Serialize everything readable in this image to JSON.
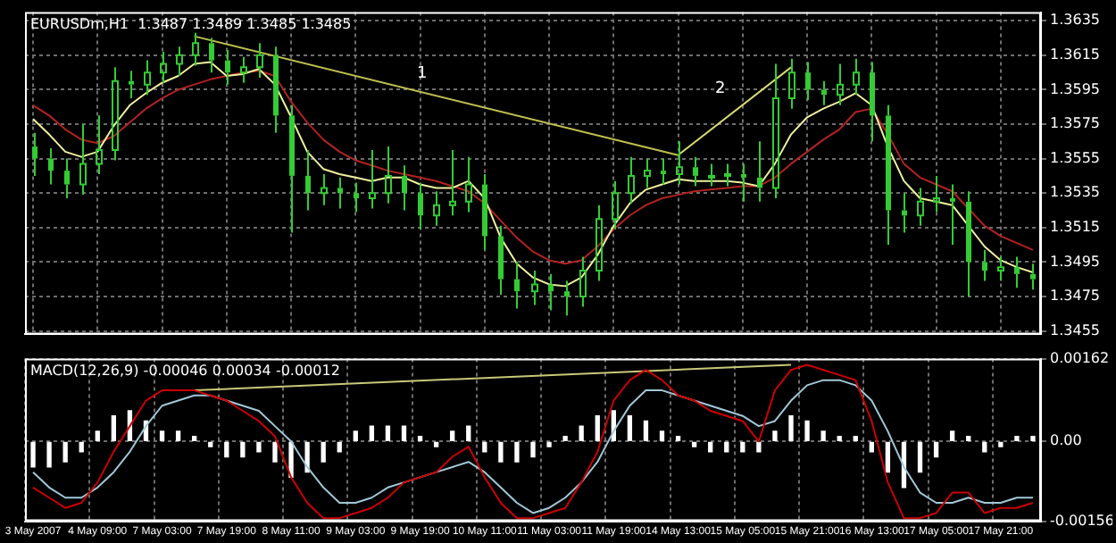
{
  "chart_data": [
    {
      "type": "candlestick",
      "title": "EURUSDm,H1  1.3487 1.3489 1.3485 1.3485",
      "color": "#33cc33",
      "categories": [
        null,
        null,
        null,
        null,
        null,
        null,
        null,
        null,
        null,
        null,
        null,
        null,
        null,
        null,
        null,
        null,
        null,
        null,
        null,
        null,
        null,
        null,
        null,
        null,
        null,
        null,
        null,
        null,
        null,
        null,
        null,
        null,
        null,
        null,
        null,
        null,
        null,
        null,
        null,
        null,
        null,
        null,
        null,
        null,
        null,
        null,
        null,
        null,
        null,
        null,
        null,
        null,
        null,
        null,
        null,
        null,
        null,
        null,
        null,
        null,
        null,
        null,
        null
      ],
      "ohlc": [
        [
          1.3562,
          1.357,
          1.3545,
          1.3555
        ],
        [
          1.3555,
          1.3561,
          1.354,
          1.3548
        ],
        [
          1.3548,
          1.3555,
          1.3532,
          1.354
        ],
        [
          1.354,
          1.3575,
          1.3534,
          1.3552
        ],
        [
          1.3552,
          1.358,
          1.3546,
          1.356
        ],
        [
          1.356,
          1.3608,
          1.3554,
          1.36
        ],
        [
          1.36,
          1.3606,
          1.359,
          1.3598
        ],
        [
          1.3598,
          1.3612,
          1.3592,
          1.3605
        ],
        [
          1.3605,
          1.3617,
          1.3599,
          1.361
        ],
        [
          1.361,
          1.362,
          1.3603,
          1.3615
        ],
        [
          1.3615,
          1.3628,
          1.3609,
          1.3622
        ],
        [
          1.3622,
          1.3625,
          1.3605,
          1.3612
        ],
        [
          1.3612,
          1.3618,
          1.3598,
          1.3605
        ],
        [
          1.3605,
          1.3614,
          1.3599,
          1.3608
        ],
        [
          1.3608,
          1.3622,
          1.3602,
          1.3615
        ],
        [
          1.3615,
          1.362,
          1.357,
          1.358
        ],
        [
          1.358,
          1.3586,
          1.3512,
          1.3545
        ],
        [
          1.3545,
          1.356,
          1.3525,
          1.3535
        ],
        [
          1.3535,
          1.3546,
          1.3528,
          1.3538
        ],
        [
          1.3538,
          1.3544,
          1.3526,
          1.3535
        ],
        [
          1.3535,
          1.3541,
          1.3524,
          1.3532
        ],
        [
          1.3532,
          1.356,
          1.3526,
          1.3535
        ],
        [
          1.3535,
          1.3562,
          1.3529,
          1.3545
        ],
        [
          1.3545,
          1.3551,
          1.3525,
          1.3535
        ],
        [
          1.3535,
          1.3541,
          1.3514,
          1.3522
        ],
        [
          1.3522,
          1.3536,
          1.3516,
          1.3528
        ],
        [
          1.3528,
          1.356,
          1.3522,
          1.353
        ],
        [
          1.353,
          1.3556,
          1.3524,
          1.354
        ],
        [
          1.354,
          1.3546,
          1.3502,
          1.351
        ],
        [
          1.351,
          1.3516,
          1.3476,
          1.3485
        ],
        [
          1.3485,
          1.3495,
          1.3468,
          1.3478
        ],
        [
          1.3478,
          1.349,
          1.347,
          1.3482
        ],
        [
          1.3482,
          1.3488,
          1.3467,
          1.3478
        ],
        [
          1.3478,
          1.3484,
          1.3464,
          1.3475
        ],
        [
          1.3475,
          1.3498,
          1.3469,
          1.349
        ],
        [
          1.349,
          1.3528,
          1.3484,
          1.352
        ],
        [
          1.352,
          1.3542,
          1.3514,
          1.3535
        ],
        [
          1.3535,
          1.3556,
          1.3529,
          1.3545
        ],
        [
          1.3545,
          1.3555,
          1.3538,
          1.3548
        ],
        [
          1.3548,
          1.3555,
          1.354,
          1.3546
        ],
        [
          1.3546,
          1.3565,
          1.354,
          1.355
        ],
        [
          1.355,
          1.3556,
          1.3539,
          1.3545
        ],
        [
          1.3545,
          1.3552,
          1.3539,
          1.3545
        ],
        [
          1.3545,
          1.3552,
          1.3539,
          1.3546
        ],
        [
          1.3546,
          1.3552,
          1.353,
          1.3544
        ],
        [
          1.3544,
          1.3565,
          1.353,
          1.3538
        ],
        [
          1.3538,
          1.361,
          1.3532,
          1.359
        ],
        [
          1.359,
          1.3613,
          1.3584,
          1.3605
        ],
        [
          1.3605,
          1.3611,
          1.3589,
          1.3595
        ],
        [
          1.3595,
          1.36,
          1.3586,
          1.3592
        ],
        [
          1.3592,
          1.361,
          1.3586,
          1.3598
        ],
        [
          1.3598,
          1.3613,
          1.3592,
          1.3605
        ],
        [
          1.3605,
          1.3611,
          1.3565,
          1.358
        ],
        [
          1.358,
          1.3586,
          1.3505,
          1.3525
        ],
        [
          1.3525,
          1.3535,
          1.3512,
          1.3522
        ],
        [
          1.3522,
          1.3538,
          1.3516,
          1.353
        ],
        [
          1.353,
          1.3545,
          1.3524,
          1.3532
        ],
        [
          1.3532,
          1.354,
          1.3505,
          1.353
        ],
        [
          1.353,
          1.3536,
          1.3475,
          1.3495
        ],
        [
          1.3495,
          1.3502,
          1.3484,
          1.349
        ],
        [
          1.349,
          1.3498,
          1.3484,
          1.3492
        ],
        [
          1.3492,
          1.3498,
          1.348,
          1.3488
        ],
        [
          1.3488,
          1.3494,
          1.3479,
          1.3485
        ]
      ],
      "series": [
        {
          "type": "line",
          "color": "#f0f0a0",
          "values": [
            1.3578,
            1.3569,
            1.3559,
            1.3556,
            1.3559,
            1.3574,
            1.3586,
            1.3593,
            1.3599,
            1.3603,
            1.361,
            1.3611,
            1.3603,
            1.3604,
            1.3607,
            1.3598,
            1.3579,
            1.3559,
            1.3549,
            1.3546,
            1.3544,
            1.3542,
            1.3544,
            1.3544,
            1.354,
            1.3538,
            1.3538,
            1.3542,
            1.3532,
            1.3509,
            1.3494,
            1.3486,
            1.3482,
            1.3481,
            1.3486,
            1.3499,
            1.3516,
            1.3529,
            1.3537,
            1.354,
            1.3543,
            1.3542,
            1.3542,
            1.3542,
            1.3541,
            1.3539,
            1.3552,
            1.3569,
            1.3579,
            1.3584,
            1.3588,
            1.3593,
            1.3586,
            1.3562,
            1.3542,
            1.3532,
            1.353,
            1.3528,
            1.3516,
            1.3504,
            1.3496,
            1.3492,
            1.3489
          ]
        },
        {
          "type": "line",
          "color": "#b22222",
          "values": [
            1.3586,
            1.358,
            1.3572,
            1.3566,
            1.3564,
            1.3568,
            1.3576,
            1.3584,
            1.359,
            1.3595,
            1.3598,
            1.3601,
            1.3603,
            1.3605,
            1.3606,
            1.3603,
            1.3588,
            1.3576,
            1.3566,
            1.3559,
            1.3554,
            1.3551,
            1.3548,
            1.3546,
            1.3544,
            1.3542,
            1.3539,
            1.3536,
            1.3529,
            1.3519,
            1.3509,
            1.3501,
            1.3496,
            1.3494,
            1.3496,
            1.3504,
            1.3514,
            1.3522,
            1.3528,
            1.3532,
            1.3534,
            1.3536,
            1.3537,
            1.3538,
            1.3539,
            1.3539,
            1.3544,
            1.3552,
            1.3559,
            1.3566,
            1.3572,
            1.3582,
            1.3584,
            1.3569,
            1.3552,
            1.3544,
            1.354,
            1.3536,
            1.3526,
            1.3516,
            1.351,
            1.3506,
            1.3502
          ]
        },
        {
          "type": "line",
          "name": "1",
          "color": "#c0c050",
          "values": [
            null,
            null,
            null,
            null,
            null,
            null,
            null,
            null,
            null,
            null,
            1.3626,
            null,
            null,
            null,
            null,
            null,
            null,
            null,
            null,
            null,
            null,
            null,
            null,
            null,
            null,
            null,
            null,
            null,
            null,
            null,
            null,
            null,
            null,
            null,
            null,
            null,
            null,
            null,
            null,
            null,
            1.3557,
            null,
            null,
            null,
            null,
            null,
            null,
            null,
            null,
            null,
            null,
            null,
            null,
            null,
            null,
            null,
            null,
            null,
            null,
            null,
            null,
            null,
            null
          ]
        },
        {
          "type": "line",
          "name": "2",
          "color": "#d8d870",
          "values": [
            null,
            null,
            null,
            null,
            null,
            null,
            null,
            null,
            null,
            null,
            null,
            null,
            null,
            null,
            null,
            null,
            null,
            null,
            null,
            null,
            null,
            null,
            null,
            null,
            null,
            null,
            null,
            null,
            null,
            null,
            null,
            null,
            null,
            null,
            null,
            null,
            null,
            null,
            null,
            null,
            1.3557,
            null,
            null,
            null,
            null,
            null,
            null,
            1.3608,
            null,
            null,
            null,
            null,
            null,
            null,
            null,
            null,
            null,
            null,
            null,
            null,
            null,
            null,
            null
          ]
        }
      ],
      "ylim": [
        1.3453,
        1.364
      ],
      "yticks": [
        1.3635,
        1.3615,
        1.3595,
        1.3575,
        1.3555,
        1.3535,
        1.3515,
        1.3495,
        1.3475,
        1.3455
      ],
      "grid": true,
      "tick_labels": "y"
    },
    {
      "type": "bar",
      "title": "MACD(12,26,9) -0.00046 0.00034 -0.00012",
      "categories": [
        "3 May 2007",
        null,
        null,
        null,
        "4 May 09:00",
        null,
        null,
        null,
        "7 May 03:00",
        null,
        null,
        null,
        "7 May 19:00",
        null,
        null,
        null,
        "8 May 11:00",
        null,
        null,
        null,
        "9 May 03:00",
        null,
        null,
        null,
        "9 May 19:00",
        null,
        null,
        null,
        "10 May 11:00",
        null,
        null,
        null,
        "11 May 03:00",
        null,
        null,
        null,
        "11 May 19:00",
        null,
        null,
        null,
        "14 May 13:00",
        null,
        null,
        null,
        "15 May 05:00",
        null,
        null,
        null,
        "15 May 21:00",
        null,
        null,
        null,
        "16 May 13:00",
        null,
        null,
        null,
        "17 May 05:00",
        null,
        null,
        null,
        "17 May 21:00",
        null,
        null
      ],
      "series": [
        {
          "type": "bar",
          "color": "#ffffff",
          "values": [
            -0.0005,
            -0.0005,
            -0.0004,
            -0.0002,
            0.0002,
            0.0005,
            0.0006,
            0.0004,
            0.0002,
            0.0002,
            0.0001,
            -0.0001,
            -0.0003,
            -0.0003,
            -0.0002,
            -0.0004,
            -0.0007,
            -0.0006,
            -0.0004,
            -0.0002,
            0.0002,
            0.0003,
            0.0003,
            0.0003,
            0.0001,
            -0.0001,
            0.0002,
            0.0003,
            -0.0002,
            -0.0004,
            -0.0004,
            -0.0003,
            -0.0001,
            0.0001,
            0.0003,
            0.0005,
            0.0006,
            0.0005,
            0.0004,
            0.0002,
            0.0001,
            -0.0001,
            -0.0002,
            -0.0002,
            -0.0002,
            -0.0002,
            0.0002,
            0.0005,
            0.0004,
            0.0002,
            0.0001,
            0.0001,
            -0.0002,
            -0.0006,
            -0.0009,
            -0.0006,
            -0.0003,
            0.0002,
            0.0001,
            -0.0002,
            -0.0001,
            0.0001,
            0.0001
          ]
        },
        {
          "type": "line",
          "color": "#cc0000",
          "values": [
            -0.0009,
            -0.0011,
            -0.0013,
            -0.0012,
            -0.0008,
            -0.0002,
            0.0003,
            0.0008,
            0.001,
            0.001,
            0.001,
            0.0009,
            0.0008,
            0.0006,
            0.0004,
            0.0001,
            -0.0007,
            -0.0012,
            -0.0015,
            -0.0015,
            -0.0014,
            -0.0013,
            -0.0011,
            -0.0008,
            -0.0007,
            -0.0006,
            -0.0003,
            -0.0001,
            -0.0007,
            -0.0012,
            -0.0015,
            -0.0015,
            -0.0014,
            -0.0013,
            -0.0008,
            -0.0002,
            0.0008,
            0.0012,
            0.0014,
            0.0012,
            0.0009,
            0.0008,
            0.0006,
            0.0005,
            0.0004,
            0.0,
            0.001,
            0.0014,
            0.0015,
            0.0014,
            0.0013,
            0.0012,
            0.0004,
            -0.0008,
            -0.0015,
            -0.0015,
            -0.0014,
            -0.001,
            -0.001,
            -0.0014,
            -0.0013,
            -0.0013,
            -0.0012
          ]
        },
        {
          "type": "line",
          "color": "#a0c8d8",
          "values": [
            -0.0006,
            -0.0009,
            -0.0011,
            -0.0011,
            -0.0009,
            -0.0006,
            -0.0002,
            0.0003,
            0.0007,
            0.0008,
            0.0009,
            0.0009,
            0.0008,
            0.0007,
            0.0006,
            0.0003,
            0.0,
            -0.0005,
            -0.0009,
            -0.0012,
            -0.0012,
            -0.0011,
            -0.0009,
            -0.0008,
            -0.0007,
            -0.0006,
            -0.0005,
            -0.0004,
            -0.0006,
            -0.0009,
            -0.0012,
            -0.0014,
            -0.0013,
            -0.0011,
            -0.0008,
            -0.0004,
            0.0002,
            0.0007,
            0.001,
            0.001,
            0.0009,
            0.0008,
            0.0007,
            0.0006,
            0.0005,
            0.0003,
            0.0004,
            0.0008,
            0.0011,
            0.0012,
            0.0012,
            0.0011,
            0.0008,
            0.0002,
            -0.0005,
            -0.001,
            -0.0012,
            -0.0012,
            -0.0011,
            -0.0012,
            -0.0012,
            -0.0011,
            -0.0011
          ]
        },
        {
          "type": "line",
          "color": "#c8c878",
          "values": [
            null,
            null,
            null,
            null,
            null,
            null,
            null,
            null,
            null,
            null,
            0.001,
            null,
            null,
            null,
            null,
            null,
            null,
            null,
            null,
            null,
            null,
            null,
            null,
            null,
            null,
            null,
            null,
            null,
            null,
            null,
            null,
            null,
            null,
            null,
            null,
            null,
            null,
            null,
            null,
            null,
            null,
            null,
            null,
            null,
            null,
            null,
            null,
            0.0015,
            null,
            null,
            null,
            null,
            null,
            null,
            null,
            null,
            null,
            null,
            null,
            null,
            null,
            null,
            null
          ]
        }
      ],
      "ylim": [
        -0.00156,
        0.00162
      ],
      "yticks": [
        0.00162,
        {
          "value": 0,
          "label": "0.00"
        },
        -0.00156
      ],
      "grid": true
    }
  ]
}
